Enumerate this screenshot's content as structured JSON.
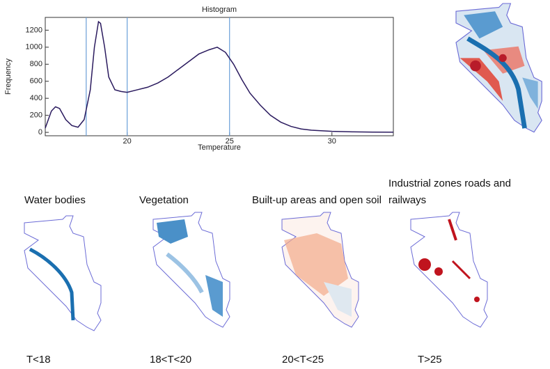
{
  "chart_data": {
    "type": "line",
    "title": "Histogram",
    "x_label": "Temperature",
    "y_label": "Frequency",
    "x": [
      16,
      16.3,
      16.5,
      16.7,
      17,
      17.3,
      17.6,
      17.9,
      18.2,
      18.4,
      18.6,
      18.7,
      18.9,
      19.1,
      19.4,
      19.7,
      20,
      20.5,
      21,
      21.5,
      22,
      22.5,
      23,
      23.5,
      24,
      24.4,
      24.8,
      25.2,
      25.6,
      26,
      26.5,
      27,
      27.5,
      28,
      28.5,
      29,
      30,
      31,
      32,
      33
    ],
    "series": [
      {
        "name": "Frequency",
        "color": "#2a1a5e",
        "values": [
          50,
          250,
          300,
          280,
          150,
          80,
          60,
          150,
          500,
          1000,
          1300,
          1280,
          1000,
          650,
          500,
          480,
          470,
          500,
          530,
          580,
          650,
          740,
          830,
          920,
          970,
          1000,
          940,
          800,
          620,
          460,
          320,
          200,
          120,
          70,
          40,
          25,
          12,
          6,
          3,
          2
        ]
      }
    ],
    "thresholds": [
      18,
      20,
      25
    ],
    "threshold_color": "#6a9fd8",
    "xlim": [
      16,
      33
    ],
    "ylim": [
      -40,
      1350
    ],
    "xticks": [
      20,
      25,
      30
    ],
    "yticks": [
      0,
      200,
      400,
      600,
      800,
      1000,
      1200
    ]
  },
  "panels": [
    {
      "title": "Water bodies",
      "range": "T<18"
    },
    {
      "title": "Vegetation",
      "range": "18<T<20"
    },
    {
      "title": "Built-up areas and open soil",
      "range": "20<T<25"
    },
    {
      "title": "Industrial zones roads and railways",
      "range": "T>25"
    }
  ]
}
